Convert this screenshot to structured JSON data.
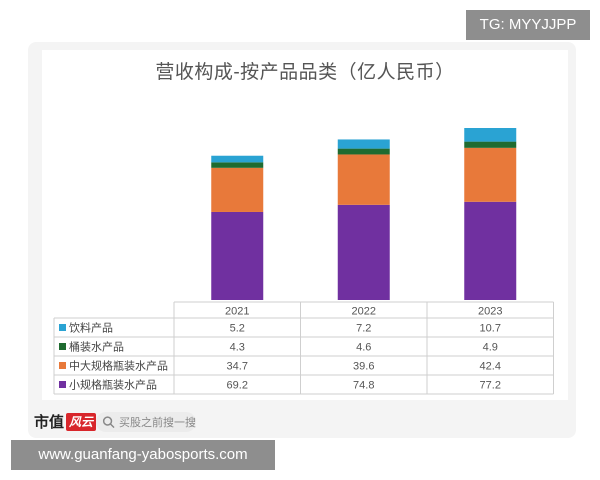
{
  "watermark": {
    "tg": "TG: MYYJJPP",
    "url": "www.guanfang-yabosports.com"
  },
  "footer": {
    "brand_text": "市值",
    "brand_mark": "风云",
    "search_placeholder": "买股之前搜一搜"
  },
  "colors": {
    "饮料产品": "#2aa3d3",
    "桶装水产品": "#1f6b30",
    "中大规格瓶装水产品": "#e8793a",
    "小规格瓶装水产品": "#7030a0"
  },
  "chart_data": {
    "type": "bar",
    "stacked": true,
    "title": "营收构成-按产品品类（亿人民币）",
    "categories": [
      "2021",
      "2022",
      "2023"
    ],
    "series": [
      {
        "name": "饮料产品",
        "values": [
          5.2,
          7.2,
          10.7
        ],
        "color": "#2aa3d3"
      },
      {
        "name": "桶装水产品",
        "values": [
          4.3,
          4.6,
          4.9
        ],
        "color": "#1f6b30"
      },
      {
        "name": "中大规格瓶装水产品",
        "values": [
          34.7,
          39.6,
          42.4
        ],
        "color": "#e8793a"
      },
      {
        "name": "小规格瓶装水产品",
        "values": [
          69.2,
          74.8,
          77.2
        ],
        "color": "#7030a0"
      }
    ],
    "data_table": true,
    "grid": false
  }
}
